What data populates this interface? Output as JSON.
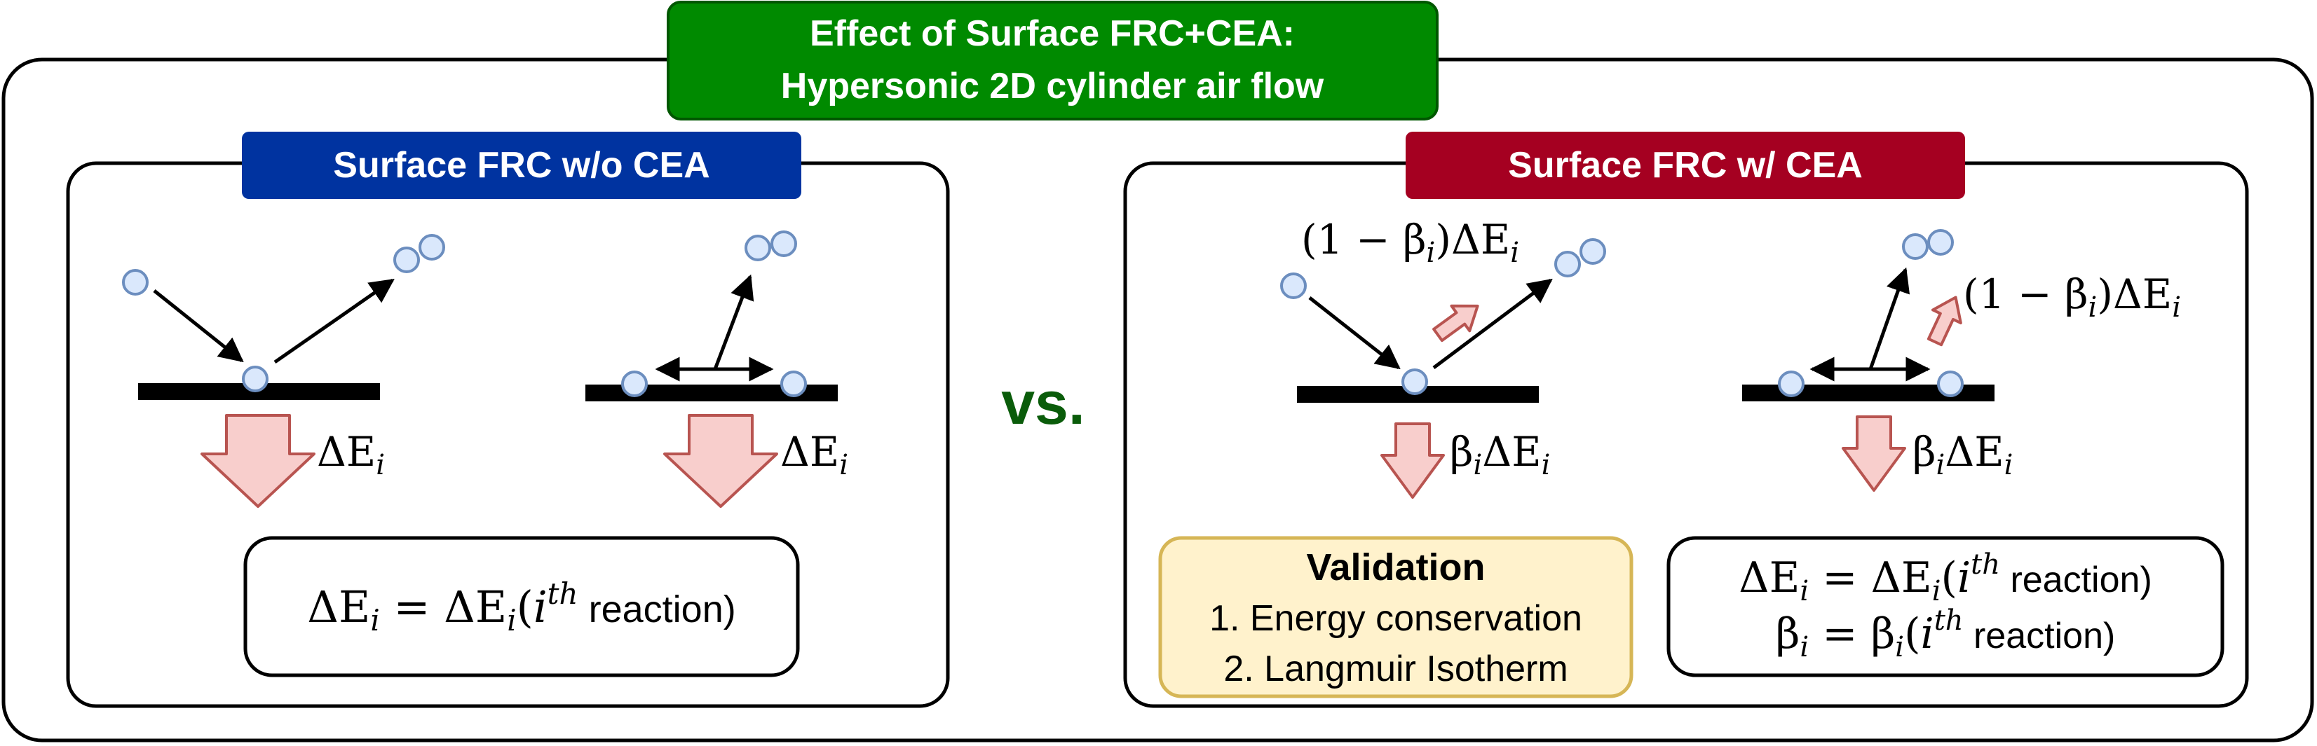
{
  "header": {
    "line1": "Effect of Surface FRC+CEA:",
    "line2": "Hypersonic 2D cylinder air flow",
    "color": "#008a00"
  },
  "vs_label": "vs.",
  "left_panel": {
    "title": "Surface FRC w/o CEA",
    "title_color": "#0033a0",
    "energy_label": "ΔE",
    "energy_sub": "i",
    "formula": {
      "lhs": "ΔE",
      "lhs_sub": "i",
      "eq": " = ",
      "rhs": "ΔE",
      "rhs_sub": "i",
      "paren_open": "(",
      "i": "i",
      "sup": "th",
      "word": " reaction)"
    }
  },
  "right_panel": {
    "title": "Surface FRC w/ CEA",
    "title_color": "#a50021",
    "released_label": {
      "prefix": "(1 − β",
      "sub": "i",
      "suffix": ")ΔE",
      "sub2": "i"
    },
    "deposited_label": {
      "beta": "β",
      "sub": "i",
      "de": "ΔE",
      "sub2": "i"
    },
    "validation": {
      "title": "Validation",
      "items": [
        "1. Energy conservation",
        "2. Langmuir Isotherm"
      ],
      "fill": "#fff2cc",
      "stroke": "#d6b656"
    },
    "formula": {
      "line1": {
        "lhs": "ΔE",
        "lhs_sub": "i",
        "eq": " = ",
        "rhs": "ΔE",
        "rhs_sub": "i",
        "paren_open": "(",
        "i": "i",
        "sup": "th",
        "word": " reaction)"
      },
      "line2": {
        "lhs": "β",
        "lhs_sub": "i",
        "eq": " = ",
        "rhs": "β",
        "rhs_sub": "i",
        "paren_open": "(",
        "i": "i",
        "sup": "th",
        "word": " reaction)"
      }
    }
  },
  "colors": {
    "particle_fill": "#dae8fc",
    "particle_stroke": "#6c8ebf",
    "arrow_fill": "#f8cecc",
    "arrow_stroke": "#b85450"
  }
}
